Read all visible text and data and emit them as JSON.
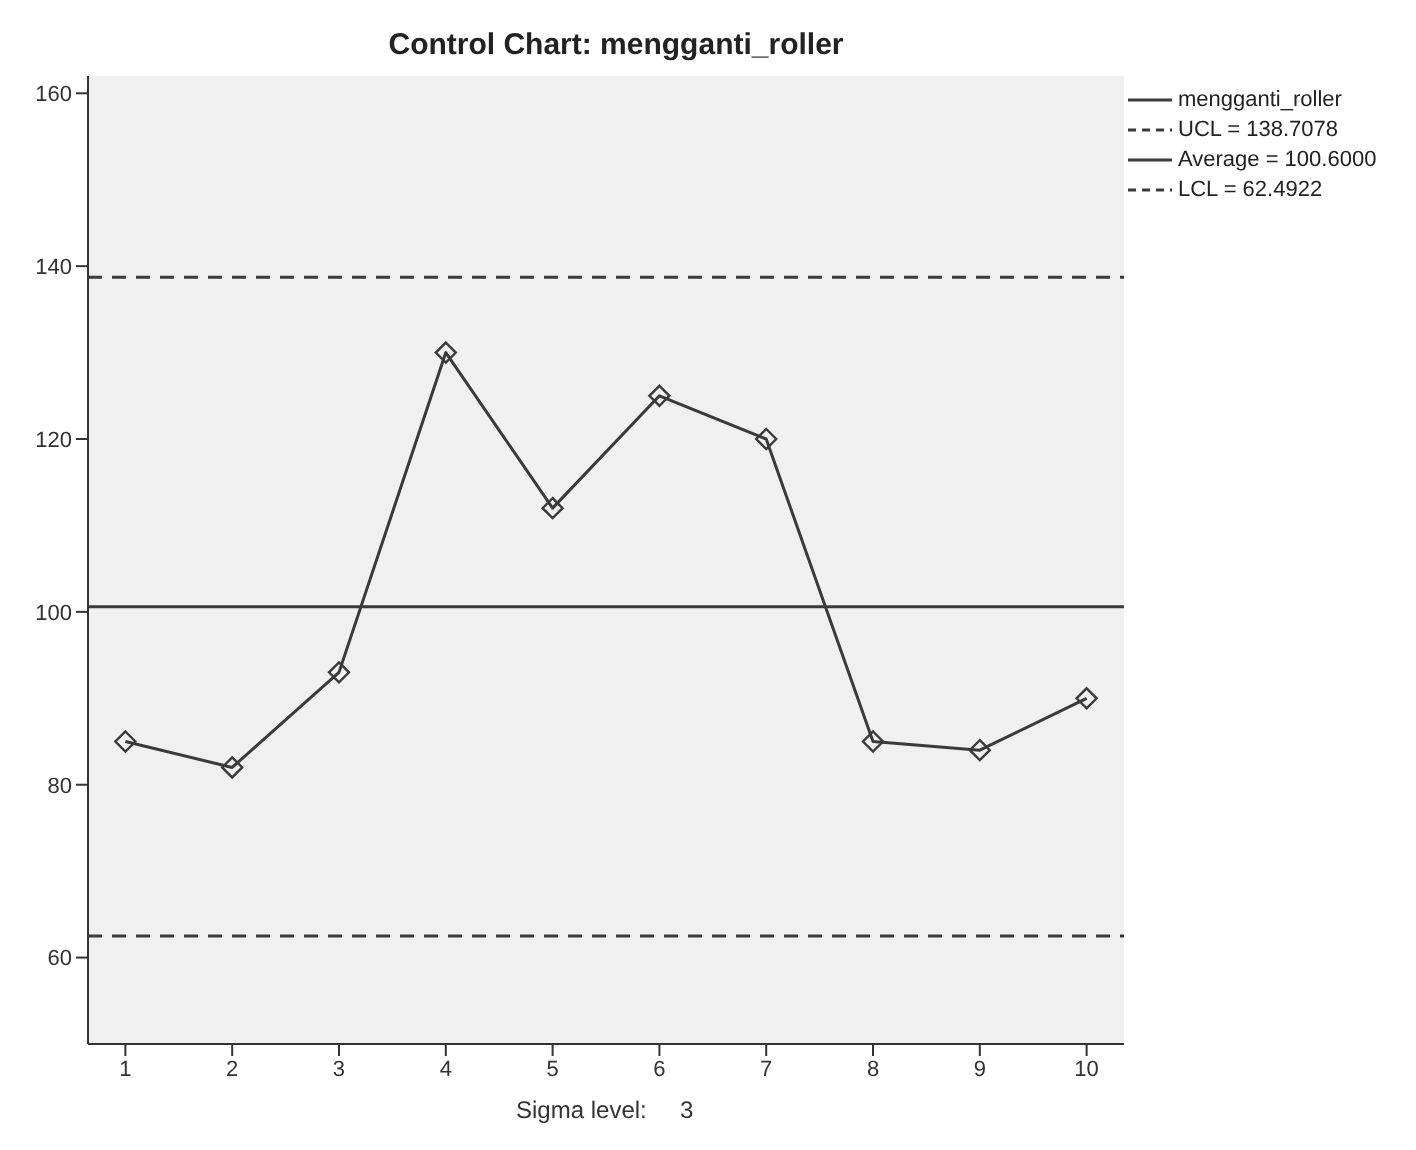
{
  "chart_data": {
    "type": "line",
    "title": "Control Chart: mengganti_roller",
    "categories": [
      "1",
      "2",
      "3",
      "4",
      "5",
      "6",
      "7",
      "8",
      "9",
      "10"
    ],
    "series": [
      {
        "name": "mengganti_roller",
        "color": "#3a3a3a",
        "values": [
          85,
          82,
          93,
          130,
          112,
          125,
          120,
          85,
          84,
          90
        ]
      }
    ],
    "ylim": [
      50,
      162
    ],
    "yticks": [
      60,
      80,
      100,
      120,
      140,
      160
    ],
    "ref_lines": [
      {
        "axis": "y",
        "value": 138.7078,
        "label": "UCL = 138.7078",
        "color": "#3a3a3a",
        "line_style": "dashed"
      },
      {
        "axis": "y",
        "value": 100.6,
        "label": "Average = 100.6000",
        "color": "#3a3a3a",
        "line_style": "solid"
      },
      {
        "axis": "y",
        "value": 62.4922,
        "label": "LCL = 62.4922",
        "color": "#3a3a3a",
        "line_style": "dashed"
      }
    ],
    "annotations": [
      "Sigma level:     3"
    ],
    "marker": "diamond",
    "line_style": "solid",
    "grid": false,
    "legend": "top right"
  }
}
